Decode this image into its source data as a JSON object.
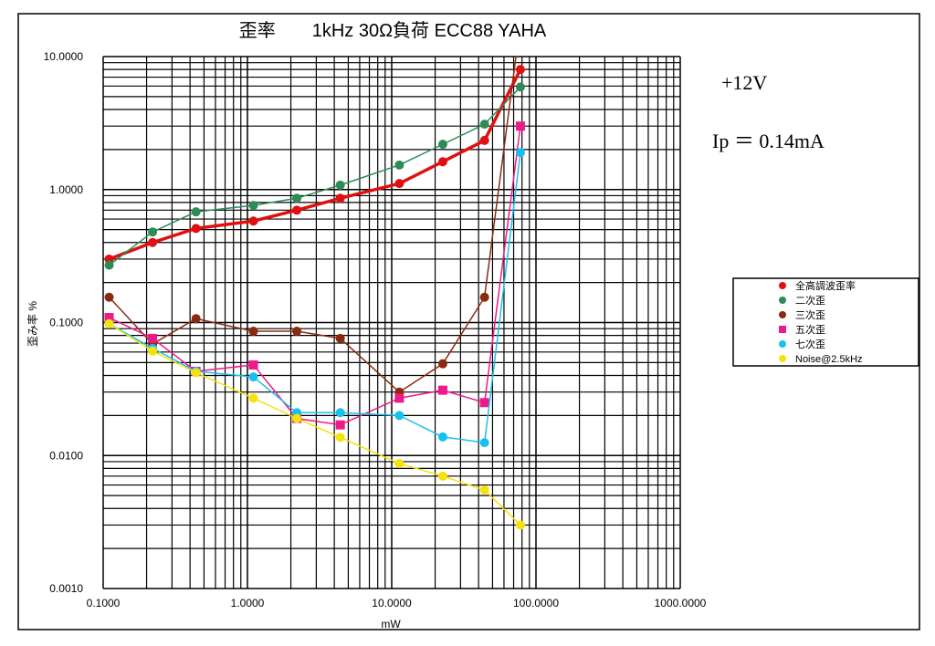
{
  "chart_data": {
    "type": "line",
    "title": "歪率　　1kHz 30Ω負荷  ECC88 YAHA",
    "xlabel": "mW",
    "ylabel": "歪み率 %",
    "xscale": "log",
    "yscale": "log",
    "xlim": [
      0.1,
      1000
    ],
    "ylim": [
      0.001,
      10
    ],
    "grid": true,
    "legend_position": "right",
    "x_tick_labels": [
      "0.1000",
      "1.0000",
      "10.0000",
      "100.0000",
      "1000.0000"
    ],
    "y_tick_labels": [
      "0.0010",
      "0.0100",
      "0.1000",
      "1.0000",
      "10.0000"
    ],
    "annotations": [
      "+12V",
      "Ip ＝ 0.14mA"
    ],
    "x": [
      0.11,
      0.22,
      0.44,
      1.1,
      2.2,
      4.4,
      11.3,
      22.6,
      44,
      78
    ],
    "series": [
      {
        "name": "全高調波歪率",
        "color": "#e01010",
        "marker": "circle",
        "width": 3.5,
        "values": [
          0.3,
          0.4,
          0.51,
          0.58,
          0.7,
          0.86,
          1.11,
          1.62,
          2.34,
          8.0
        ]
      },
      {
        "name": "二次歪",
        "color": "#2e8b57",
        "marker": "circle",
        "width": 1.5,
        "values": [
          0.27,
          0.48,
          0.68,
          0.76,
          0.86,
          1.08,
          1.53,
          2.19,
          3.1,
          5.9
        ]
      },
      {
        "name": "三次歪",
        "color": "#8b2a10",
        "marker": "circle",
        "width": 1.5,
        "values": [
          0.155,
          0.069,
          0.107,
          0.086,
          0.086,
          0.076,
          0.03,
          0.049,
          0.155,
          18
        ]
      },
      {
        "name": "五次歪",
        "color": "#ee1a8a",
        "marker": "square",
        "width": 1.5,
        "values": [
          0.109,
          0.076,
          0.043,
          0.048,
          0.019,
          0.017,
          0.027,
          0.031,
          0.025,
          3.0
        ]
      },
      {
        "name": "七次歪",
        "color": "#18c0f0",
        "marker": "circle",
        "width": 1.5,
        "values": [
          0.098,
          0.064,
          0.043,
          0.039,
          0.021,
          0.021,
          0.02,
          0.0138,
          0.0125,
          1.9
        ]
      },
      {
        "name": "Noise@2.5kHz",
        "color": "#f5e20a",
        "marker": "circle",
        "width": 1.5,
        "values": [
          0.098,
          0.061,
          0.042,
          0.027,
          0.019,
          0.0137,
          0.0087,
          0.007,
          0.0055,
          0.003
        ]
      }
    ]
  }
}
